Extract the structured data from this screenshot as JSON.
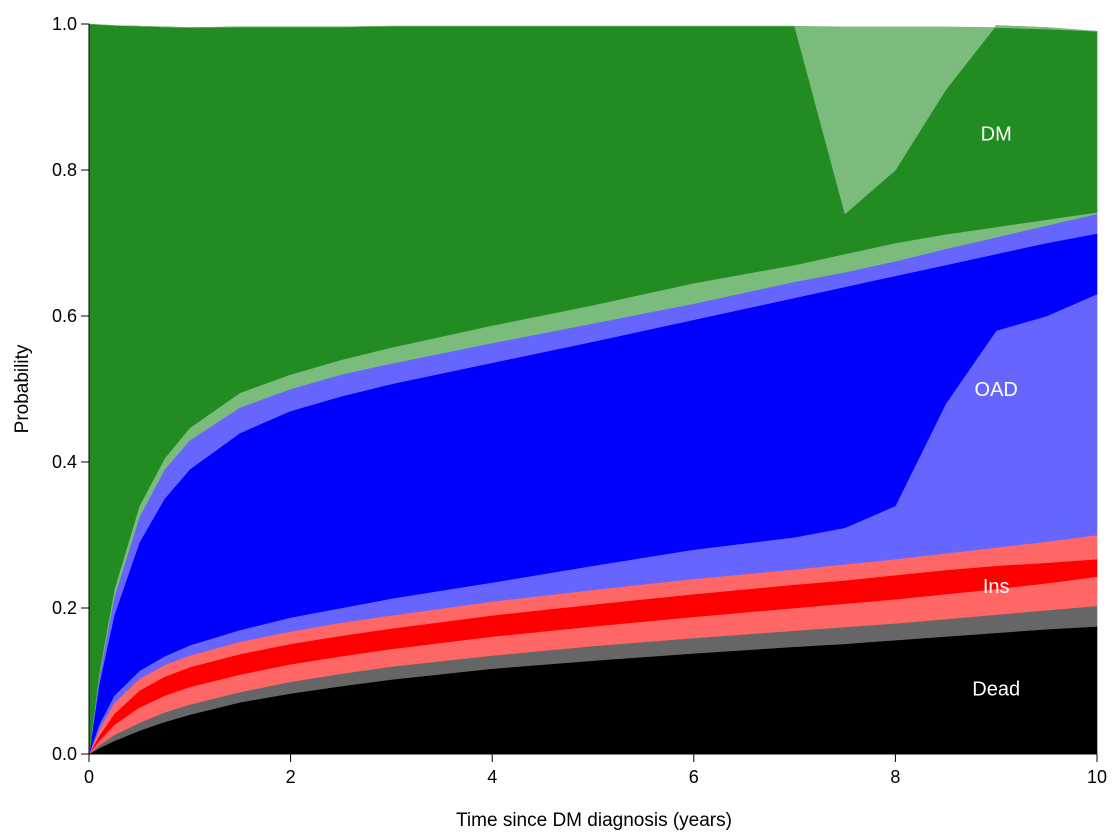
{
  "chart_data": {
    "type": "area",
    "xlabel": "Time since DM diagnosis (years)",
    "ylabel": "Probability",
    "xlim": [
      0,
      10
    ],
    "ylim": [
      0,
      1
    ],
    "x_ticks": [
      "0",
      "2",
      "4",
      "6",
      "8",
      "10"
    ],
    "y_ticks": [
      "0.0",
      "0.2",
      "0.4",
      "0.6",
      "0.8",
      "1.0"
    ],
    "grid": false,
    "legend": "none",
    "x": [
      0,
      0.1,
      0.25,
      0.5,
      0.75,
      1,
      1.5,
      2,
      2.5,
      3,
      4,
      5,
      6,
      7,
      7.5,
      8,
      8.5,
      9,
      9.5,
      10
    ],
    "boundaries": [
      {
        "name": "dead_upper",
        "values": [
          0,
          0.008,
          0.018,
          0.032,
          0.044,
          0.054,
          0.071,
          0.083,
          0.093,
          0.102,
          0.117,
          0.128,
          0.138,
          0.147,
          0.151,
          0.156,
          0.161,
          0.166,
          0.171,
          0.175
        ]
      },
      {
        "name": "dead_ci_upper",
        "values": [
          0,
          0.012,
          0.026,
          0.043,
          0.057,
          0.068,
          0.085,
          0.099,
          0.11,
          0.12,
          0.135,
          0.148,
          0.159,
          0.169,
          0.174,
          0.179,
          0.185,
          0.191,
          0.197,
          0.203
        ]
      },
      {
        "name": "ins_ci_lower",
        "values": [
          0,
          0.018,
          0.04,
          0.064,
          0.08,
          0.092,
          0.109,
          0.123,
          0.134,
          0.144,
          0.161,
          0.175,
          0.188,
          0.2,
          0.206,
          0.212,
          0.219,
          0.226,
          0.234,
          0.243
        ]
      },
      {
        "name": "ins_upper",
        "values": [
          0,
          0.025,
          0.055,
          0.087,
          0.106,
          0.119,
          0.137,
          0.151,
          0.162,
          0.172,
          0.19,
          0.205,
          0.219,
          0.232,
          0.238,
          0.245,
          0.252,
          0.258,
          0.262,
          0.267
        ]
      },
      {
        "name": "ins_ci_upper",
        "values": [
          0,
          0.033,
          0.07,
          0.103,
          0.122,
          0.135,
          0.154,
          0.168,
          0.18,
          0.19,
          0.209,
          0.225,
          0.24,
          0.253,
          0.26,
          0.267,
          0.275,
          0.283,
          0.291,
          0.3
        ]
      },
      {
        "name": "oad_ci_lower",
        "values": [
          0,
          0.04,
          0.08,
          0.114,
          0.134,
          0.149,
          0.17,
          0.187,
          0.2,
          0.213,
          0.235,
          0.258,
          0.28,
          0.297,
          0.31,
          0.34,
          0.48,
          0.58,
          0.6,
          0.63
        ]
      },
      {
        "name": "oad_upper",
        "values": [
          0,
          0.095,
          0.19,
          0.29,
          0.35,
          0.39,
          0.44,
          0.47,
          0.49,
          0.507,
          0.536,
          0.565,
          0.595,
          0.625,
          0.64,
          0.655,
          0.67,
          0.685,
          0.7,
          0.713
        ]
      },
      {
        "name": "oad_ci_upper",
        "values": [
          0,
          0.105,
          0.215,
          0.325,
          0.39,
          0.43,
          0.475,
          0.5,
          0.52,
          0.535,
          0.563,
          0.59,
          0.617,
          0.647,
          0.66,
          0.675,
          0.692,
          0.708,
          0.724,
          0.74
        ]
      },
      {
        "name": "dm_ci_lower",
        "values": [
          0,
          0.11,
          0.225,
          0.34,
          0.405,
          0.447,
          0.495,
          0.52,
          0.54,
          0.557,
          0.587,
          0.615,
          0.645,
          0.67,
          0.685,
          0.7,
          0.712,
          0.722,
          0.732,
          0.742
        ]
      },
      {
        "name": "dm_upper",
        "values": [
          1.0,
          0.999,
          0.998,
          0.997,
          0.996,
          0.995,
          0.996,
          0.996,
          0.996,
          0.997,
          0.997,
          0.997,
          0.997,
          0.997,
          0.74,
          0.8,
          0.91,
          0.998,
          0.995,
          0.99
        ]
      },
      {
        "name": "dm_ci_upper",
        "values": [
          1.0,
          0.999,
          0.998,
          0.997,
          0.996,
          0.995,
          0.996,
          0.996,
          0.996,
          0.997,
          0.997,
          0.997,
          0.997,
          0.997,
          0.996,
          0.996,
          0.996,
          0.995,
          0.993,
          0.99
        ]
      }
    ],
    "bands": [
      {
        "label": "Dead",
        "from": null,
        "to": "dead_upper",
        "color": "#000000"
      },
      {
        "label": "",
        "from": "dead_upper",
        "to": "dead_ci_upper",
        "color": "#666666"
      },
      {
        "label": "",
        "from": "dead_ci_upper",
        "to": "ins_ci_lower",
        "color": "#ff6666"
      },
      {
        "label": "Ins",
        "from": "ins_ci_lower",
        "to": "ins_upper",
        "color": "#ff0000"
      },
      {
        "label": "",
        "from": "ins_upper",
        "to": "ins_ci_upper",
        "color": "#ff6666"
      },
      {
        "label": "",
        "from": "ins_ci_upper",
        "to": "oad_ci_lower",
        "color": "#6666ff"
      },
      {
        "label": "OAD",
        "from": "oad_ci_lower",
        "to": "oad_upper",
        "color": "#0000ff"
      },
      {
        "label": "",
        "from": "oad_upper",
        "to": "oad_ci_upper",
        "color": "#6666ff"
      },
      {
        "label": "",
        "from": "oad_ci_upper",
        "to": "dm_ci_lower",
        "color": "#7bbb7b"
      },
      {
        "label": "DM",
        "from": "dm_ci_lower",
        "to": "dm_upper",
        "color": "#228b22"
      },
      {
        "label": "",
        "from": "dm_upper",
        "to": "dm_ci_upper",
        "color": "#7bbb7b"
      }
    ],
    "annotations": [
      {
        "text": "DM",
        "x": 9.0,
        "y": 0.85
      },
      {
        "text": "OAD",
        "x": 9.0,
        "y": 0.5
      },
      {
        "text": "Ins",
        "x": 9.0,
        "y": 0.23
      },
      {
        "text": "Dead",
        "x": 9.0,
        "y": 0.09
      }
    ]
  }
}
